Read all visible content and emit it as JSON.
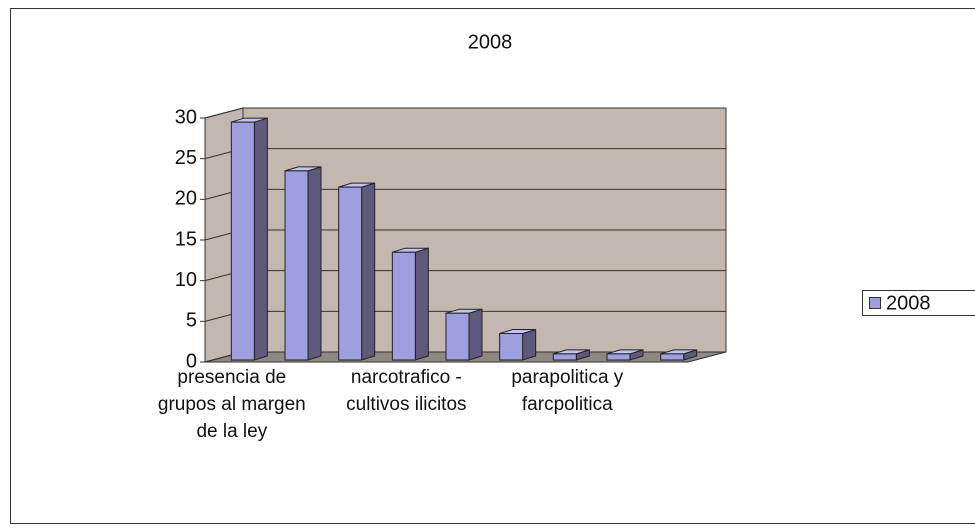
{
  "chart_data": {
    "type": "bar3d",
    "title": "2008",
    "categories": [
      "presencia de grupos al margen de la ley",
      null,
      null,
      "narcotrafico - cultivos ilicitos",
      null,
      null,
      "parapolitica y farcpolitica",
      null,
      null
    ],
    "series": [
      {
        "name": "2008",
        "color": "#9f9fe0",
        "values": [
          29.5,
          23.5,
          21.5,
          13.5,
          6,
          3.5,
          1,
          1,
          1
        ]
      }
    ],
    "ylim": [
      0,
      30
    ],
    "yticks": [
      0,
      5,
      10,
      15,
      20,
      25,
      30
    ],
    "grid": true,
    "legend": "right"
  }
}
